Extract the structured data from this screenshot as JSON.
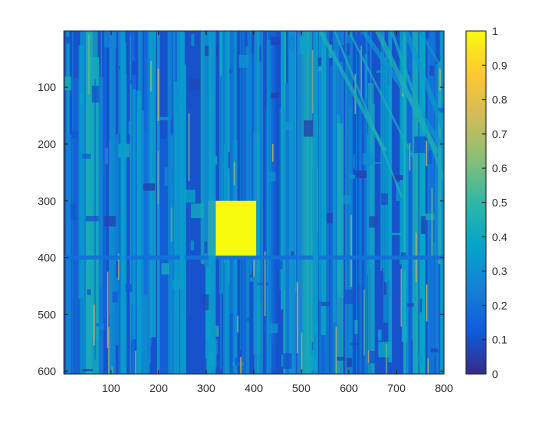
{
  "chart_data": {
    "type": "heatmap",
    "title": "",
    "xlabel": "",
    "ylabel": "",
    "xlim": [
      1,
      800
    ],
    "ylim": [
      1,
      605
    ],
    "y_direction": "reverse",
    "x_ticks": [
      100,
      200,
      300,
      400,
      500,
      600,
      700,
      800
    ],
    "y_ticks": [
      100,
      200,
      300,
      400,
      500,
      600
    ],
    "colorbar": {
      "location": "right",
      "limits": [
        0,
        1
      ],
      "ticks": [
        0,
        0.1,
        0.2,
        0.3,
        0.4,
        0.5,
        0.6,
        0.7,
        0.8,
        0.9,
        1
      ],
      "tick_labels": [
        "0",
        "0.1",
        "0.2",
        "0.3",
        "0.4",
        "0.5",
        "0.6",
        "0.7",
        "0.8",
        "0.9",
        "1"
      ],
      "colormap": "parula",
      "colormap_stops": [
        "#352a87",
        "#0f5cdd",
        "#1481d6",
        "#06a4ca",
        "#2eb7a4",
        "#87bf77",
        "#d1bb59",
        "#fec832",
        "#f9fb0e"
      ]
    },
    "background_value": 0.1,
    "regions": [
      {
        "shape": "rect",
        "x": [
          305,
          405
        ],
        "y": [
          300,
          400
        ],
        "value": 1.0
      },
      {
        "shape": "hline",
        "y": 400,
        "x": [
          1,
          800
        ],
        "value": 0.2
      },
      {
        "shape": "vband",
        "x": [
          305,
          320
        ],
        "y": [
          1,
          605
        ],
        "value": 0.35
      },
      {
        "shape": "vband",
        "x": [
          120,
          130
        ],
        "y": [
          1,
          605
        ],
        "value": 0.35
      },
      {
        "shape": "vband",
        "x": [
          245,
          255
        ],
        "y": [
          1,
          605
        ],
        "value": 0.35
      },
      {
        "shape": "vband",
        "x": [
          525,
          535
        ],
        "y": [
          1,
          605
        ],
        "value": 0.35
      }
    ]
  }
}
